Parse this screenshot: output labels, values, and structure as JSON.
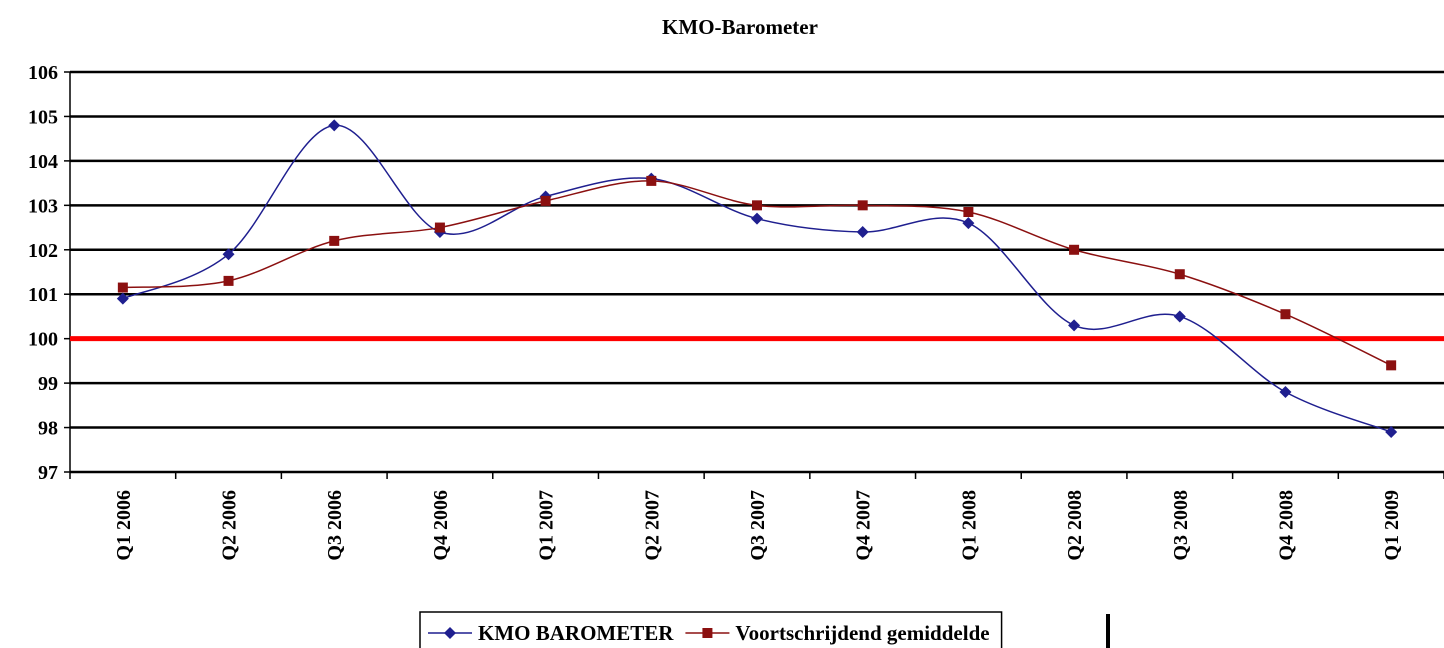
{
  "chart_data": {
    "type": "line",
    "title": "KMO-Barometer",
    "categories": [
      "Q1 2006",
      "Q2 2006",
      "Q3 2006",
      "Q4 2006",
      "Q1 2007",
      "Q2 2007",
      "Q3 2007",
      "Q4 2007",
      "Q1 2008",
      "Q2 2008",
      "Q3 2008",
      "Q4 2008",
      "Q1 2009"
    ],
    "series": [
      {
        "name": "KMO BAROMETER",
        "color": "#1f1f8f",
        "marker": "diamond",
        "values": [
          100.9,
          101.9,
          104.8,
          102.4,
          103.2,
          103.6,
          102.7,
          102.4,
          102.6,
          100.3,
          100.5,
          98.8,
          97.9
        ]
      },
      {
        "name": "Voortschrijdend gemiddelde",
        "color": "#8b1010",
        "marker": "square",
        "values": [
          101.15,
          101.3,
          102.2,
          102.5,
          103.1,
          103.55,
          103.0,
          103.0,
          102.85,
          102.0,
          101.45,
          100.55,
          99.4
        ]
      }
    ],
    "reference_line": {
      "value": 100,
      "color": "#ff0000"
    },
    "ylim": [
      97,
      106
    ],
    "yticks": [
      97,
      98,
      99,
      100,
      101,
      102,
      103,
      104,
      105,
      106
    ],
    "grid": true,
    "legend": "bottom",
    "smooth": true
  }
}
